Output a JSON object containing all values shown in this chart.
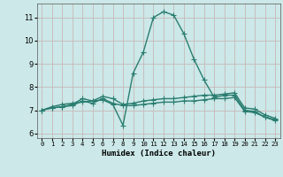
{
  "xlabel": "Humidex (Indice chaleur)",
  "x_values": [
    0,
    1,
    2,
    3,
    4,
    5,
    6,
    7,
    8,
    9,
    10,
    11,
    12,
    13,
    14,
    15,
    16,
    17,
    18,
    19,
    20,
    21,
    22,
    23
  ],
  "line1_y": [
    7.0,
    7.15,
    7.25,
    7.3,
    7.35,
    7.4,
    7.45,
    7.25,
    6.35,
    8.6,
    9.5,
    11.0,
    11.25,
    11.1,
    10.3,
    9.2,
    8.3,
    7.55,
    7.65,
    7.65,
    7.0,
    6.95,
    6.7,
    6.6
  ],
  "line2_y": [
    7.0,
    7.1,
    7.15,
    7.25,
    7.5,
    7.4,
    7.6,
    7.5,
    7.25,
    7.3,
    7.4,
    7.45,
    7.5,
    7.5,
    7.55,
    7.6,
    7.65,
    7.65,
    7.7,
    7.75,
    7.1,
    7.05,
    6.8,
    6.65
  ],
  "line3_y": [
    7.0,
    7.1,
    7.15,
    7.2,
    7.4,
    7.3,
    7.5,
    7.3,
    7.2,
    7.2,
    7.25,
    7.3,
    7.35,
    7.35,
    7.4,
    7.4,
    7.45,
    7.5,
    7.5,
    7.55,
    6.95,
    6.9,
    6.7,
    6.55
  ],
  "line_color": "#2a7d70",
  "bg_color": "#cce8e8",
  "grid_color": "#c8b8b8",
  "ylim": [
    5.8,
    11.6
  ],
  "yticks": [
    6,
    7,
    8,
    9,
    10,
    11
  ],
  "marker": "+",
  "markersize": 4,
  "linewidth": 1.0
}
